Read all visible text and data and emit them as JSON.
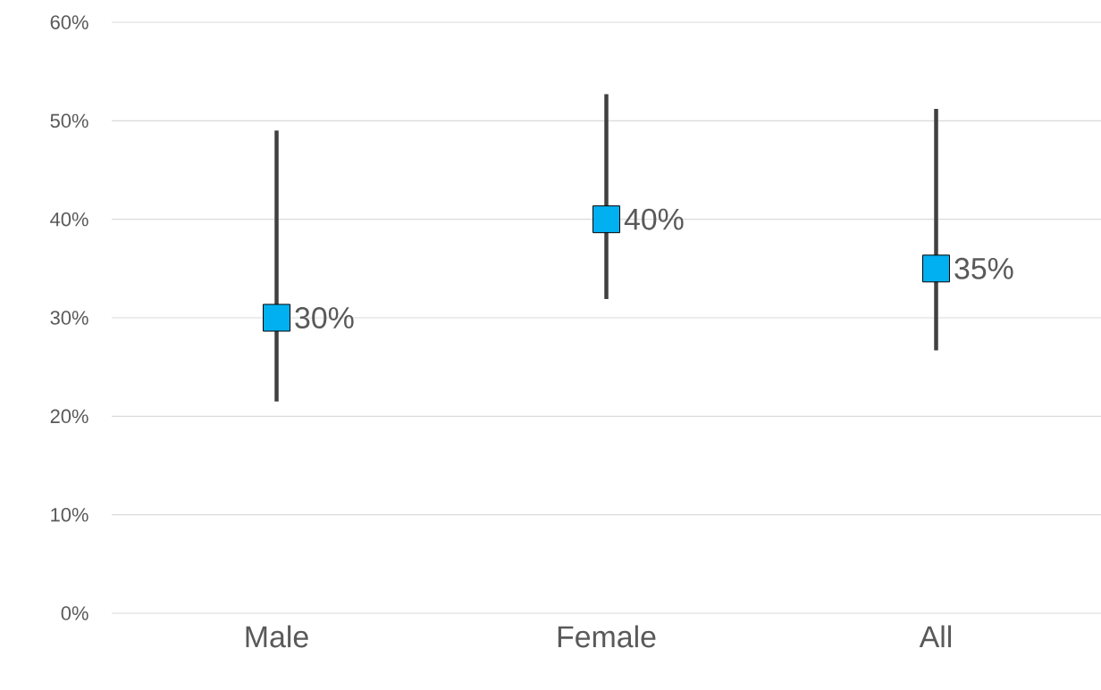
{
  "chart_data": {
    "type": "scatter",
    "categories": [
      "Male",
      "Female",
      "All"
    ],
    "values": [
      30,
      40,
      35
    ],
    "errors": [
      [
        21.5,
        49
      ],
      [
        31.9,
        52.7
      ],
      [
        26.7,
        51.2
      ]
    ],
    "value_labels": [
      "30%",
      "40%",
      "35%"
    ],
    "color": "#00b0f0",
    "marker": "square",
    "ylim": [
      0,
      60
    ],
    "yticks": [
      {
        "value": 0,
        "label": "0%"
      },
      {
        "value": 10,
        "label": "10%"
      },
      {
        "value": 20,
        "label": "20%"
      },
      {
        "value": 30,
        "label": "30%"
      },
      {
        "value": 40,
        "label": "40%"
      },
      {
        "value": 50,
        "label": "50%"
      },
      {
        "value": 60,
        "label": "60%"
      }
    ],
    "grid": "y"
  }
}
